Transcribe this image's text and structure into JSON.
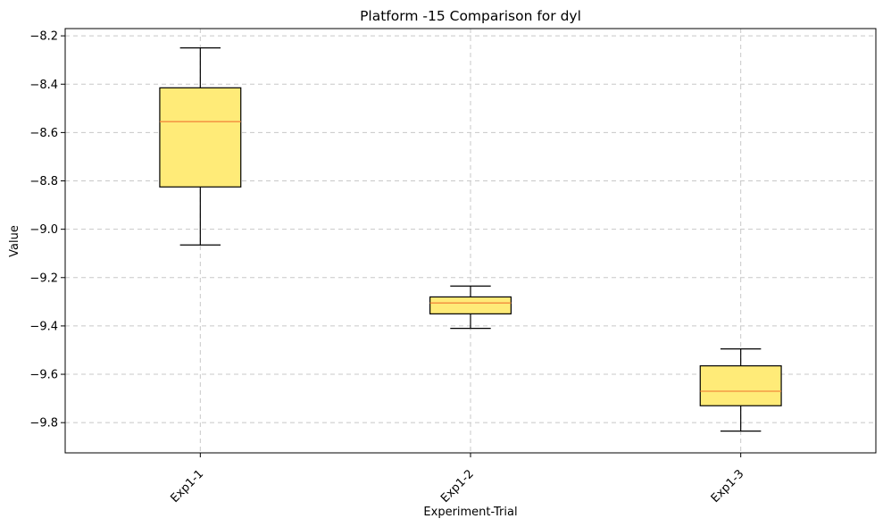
{
  "chart_data": {
    "type": "box",
    "title": "Platform -15 Comparison for dyl",
    "xlabel": "Experiment-Trial",
    "ylabel": "Value",
    "ylim": [
      -9.925,
      -8.17
    ],
    "yticks": [
      -8.2,
      -8.4,
      -8.6,
      -8.8,
      -9.0,
      -9.2,
      -9.4,
      -9.6,
      -9.8
    ],
    "ytick_labels": [
      "−8.2",
      "−8.4",
      "−8.6",
      "−8.8",
      "−9.0",
      "−9.2",
      "−9.4",
      "−9.6",
      "−9.8"
    ],
    "grid": true,
    "categories": [
      "Exp1-1",
      "Exp1-2",
      "Exp1-3"
    ],
    "boxes": [
      {
        "category": "Exp1-1",
        "whisker_low": -9.065,
        "q1": -8.825,
        "median": -8.555,
        "q3": -8.415,
        "whisker_high": -8.25
      },
      {
        "category": "Exp1-2",
        "whisker_low": -9.41,
        "q1": -9.35,
        "median": -9.305,
        "q3": -9.28,
        "whisker_high": -9.235
      },
      {
        "category": "Exp1-3",
        "whisker_low": -9.835,
        "q1": -9.73,
        "median": -9.67,
        "q3": -9.565,
        "whisker_high": -9.495
      }
    ],
    "colors": {
      "box_fill": "#ffeb78",
      "box_edge": "#000000",
      "median": "#f28b3c",
      "grid": "#c8c8c8"
    }
  }
}
